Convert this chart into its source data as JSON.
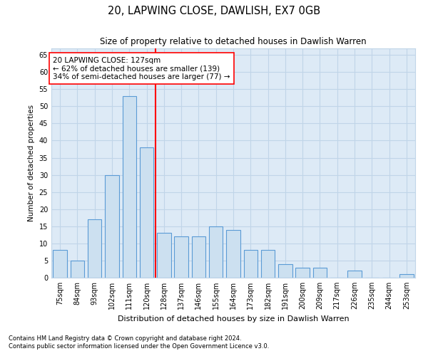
{
  "title1": "20, LAPWING CLOSE, DAWLISH, EX7 0GB",
  "title2": "Size of property relative to detached houses in Dawlish Warren",
  "xlabel": "Distribution of detached houses by size in Dawlish Warren",
  "ylabel": "Number of detached properties",
  "categories": [
    "75sqm",
    "84sqm",
    "93sqm",
    "102sqm",
    "111sqm",
    "120sqm",
    "128sqm",
    "137sqm",
    "146sqm",
    "155sqm",
    "164sqm",
    "173sqm",
    "182sqm",
    "191sqm",
    "200sqm",
    "209sqm",
    "217sqm",
    "226sqm",
    "235sqm",
    "244sqm",
    "253sqm"
  ],
  "values": [
    8,
    5,
    17,
    30,
    53,
    38,
    13,
    12,
    12,
    15,
    14,
    8,
    8,
    4,
    3,
    3,
    0,
    2,
    0,
    0,
    1
  ],
  "bar_color": "#cce0f0",
  "bar_edge_color": "#5b9bd5",
  "vline_x_index": 6,
  "vline_color": "red",
  "annotation_text": "20 LAPWING CLOSE: 127sqm\n← 62% of detached houses are smaller (139)\n34% of semi-detached houses are larger (77) →",
  "annotation_box_color": "white",
  "annotation_box_edge_color": "red",
  "ylim": [
    0,
    67
  ],
  "yticks": [
    0,
    5,
    10,
    15,
    20,
    25,
    30,
    35,
    40,
    45,
    50,
    55,
    60,
    65
  ],
  "grid_color": "#c0d5e8",
  "footnote1": "Contains HM Land Registry data © Crown copyright and database right 2024.",
  "footnote2": "Contains public sector information licensed under the Open Government Licence v3.0.",
  "bg_color": "#ddeaf6"
}
